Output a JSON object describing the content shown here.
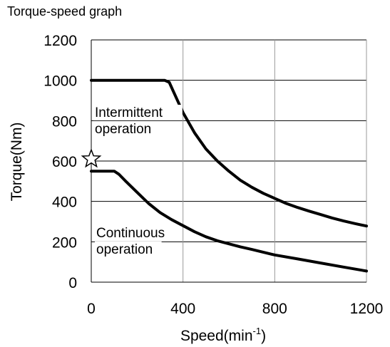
{
  "chart_data": {
    "type": "line",
    "title": "Torque-speed graph",
    "xlabel": "Speed(min",
    "xlabel_sup": "-1",
    "xlabel_close": ")",
    "ylabel": "Torque(Nm)",
    "xlim": [
      0,
      1200
    ],
    "ylim": [
      0,
      1200
    ],
    "xticks": [
      0,
      400,
      800,
      1200
    ],
    "yticks": [
      0,
      200,
      400,
      600,
      800,
      1000,
      1200
    ],
    "grid": true,
    "series": [
      {
        "name": "Intermittent operation",
        "label_lines": [
          "Intermittent",
          "operation"
        ],
        "x": [
          0,
          320,
          340,
          360,
          400,
          450,
          500,
          550,
          600,
          650,
          700,
          750,
          800,
          850,
          900,
          950,
          1000,
          1050,
          1100,
          1150,
          1200
        ],
        "y": [
          1000,
          1000,
          990,
          940,
          840,
          740,
          660,
          600,
          550,
          505,
          470,
          440,
          415,
          390,
          370,
          352,
          335,
          318,
          303,
          290,
          278
        ]
      },
      {
        "name": "Continuous operation",
        "label_lines": [
          "Continuous",
          "operation"
        ],
        "x": [
          0,
          100,
          120,
          150,
          200,
          250,
          300,
          350,
          400,
          450,
          500,
          550,
          600,
          650,
          700,
          800,
          900,
          1000,
          1100,
          1200
        ],
        "y": [
          550,
          550,
          535,
          500,
          445,
          390,
          345,
          310,
          280,
          250,
          225,
          205,
          190,
          175,
          162,
          135,
          115,
          95,
          75,
          55
        ]
      }
    ],
    "marker": {
      "symbol": "star",
      "x": 0,
      "y": 610
    },
    "colors": {
      "line": "#000000",
      "grid": "#999999",
      "marker_fill": "#ffffff"
    }
  }
}
